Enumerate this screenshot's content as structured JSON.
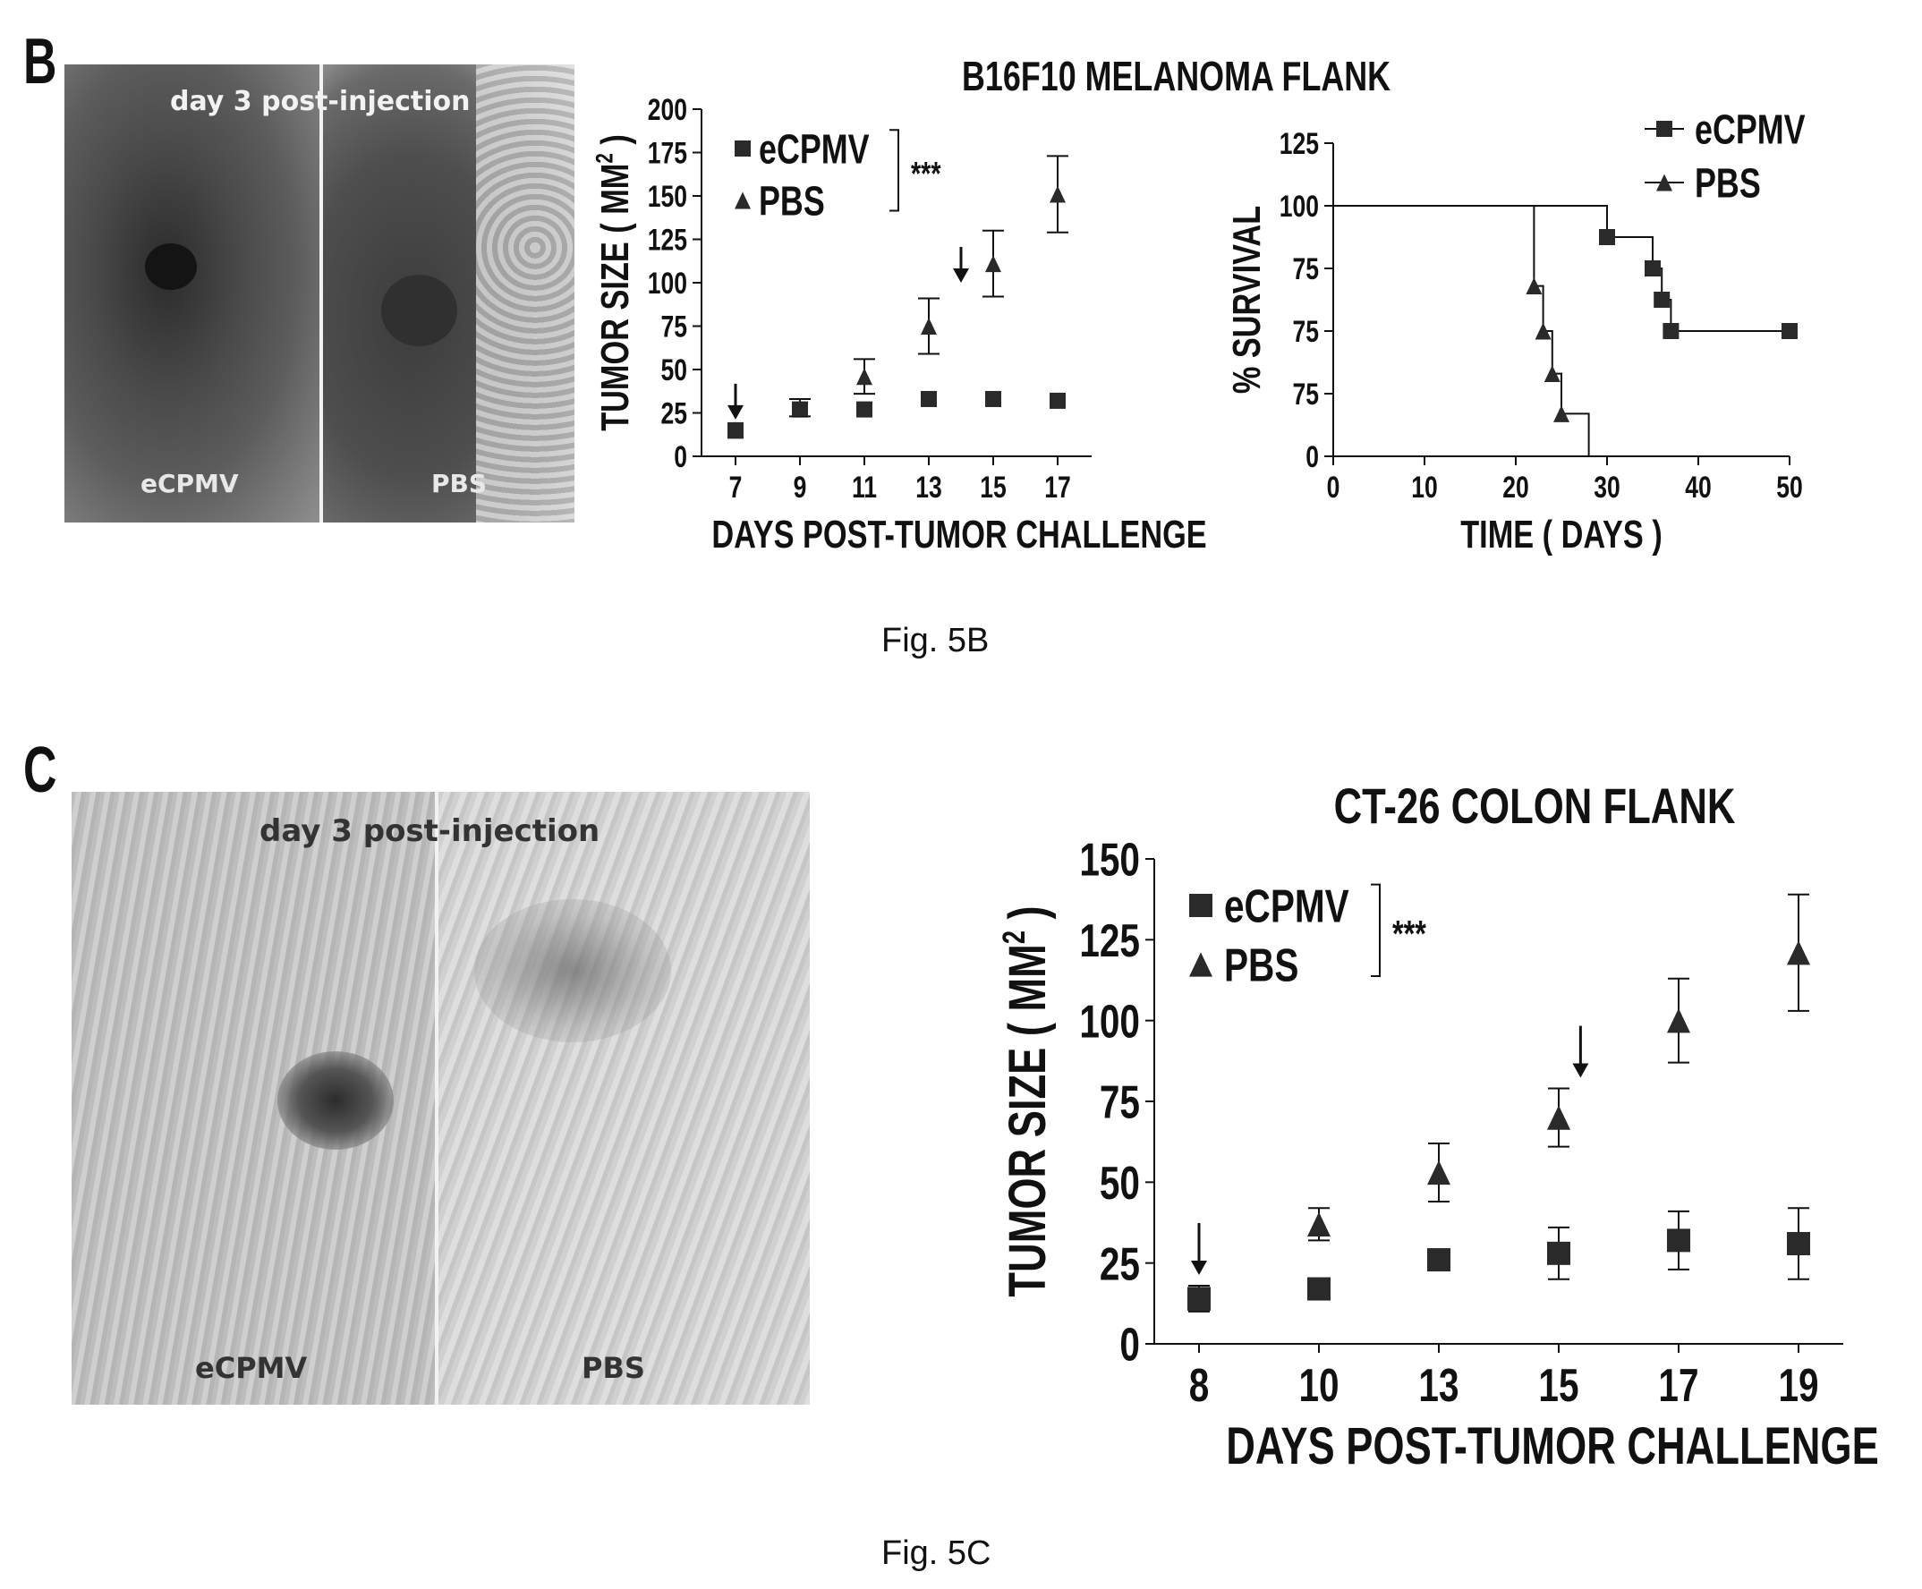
{
  "figure_b": {
    "panel_letter": "B",
    "caption": "Fig. 5B",
    "photo": {
      "top_label": "day 3 post-injection",
      "left_label": "eCPMV",
      "right_label": "PBS"
    },
    "shared_title": "B16F10 MELANOMA FLANK"
  },
  "figure_c": {
    "panel_letter": "C",
    "caption": "Fig. 5C",
    "photo": {
      "top_label": "day 3 post-injection",
      "left_label": "eCPMV",
      "right_label": "PBS"
    }
  },
  "colors": {
    "ink": "#111111",
    "marker": "#2a2a2a",
    "photo_dark": "#3a3a3a",
    "photo_light": "#c8c8c8"
  },
  "chart_data": [
    {
      "id": "b_tumor",
      "type": "scatter",
      "title": "",
      "xlabel": "DAYS POST-TUMOR CHALLENGE",
      "ylabel": "TUMOR SIZE ( MM2 )",
      "ylim": [
        0,
        200
      ],
      "yticks": [
        "0",
        "25",
        "50",
        "75",
        "100",
        "125",
        "150",
        "175",
        "200"
      ],
      "categories": [
        "7",
        "9",
        "11",
        "13",
        "15",
        "17"
      ],
      "legend_position": "top-left",
      "significance": "***",
      "treatment_arrows_at": [
        "7",
        "14"
      ],
      "series": [
        {
          "name": "eCPMV",
          "marker": "square",
          "values": [
            15,
            27,
            27,
            33,
            33,
            32
          ],
          "errors": [
            0,
            0,
            0,
            0,
            0,
            0
          ]
        },
        {
          "name": "PBS",
          "marker": "triangle",
          "values": [
            15,
            28,
            46,
            75,
            111,
            151
          ],
          "errors": [
            0,
            5,
            10,
            16,
            19,
            22
          ]
        }
      ]
    },
    {
      "id": "b_survival",
      "type": "line",
      "title": "",
      "xlabel": "TIME ( DAYS )",
      "ylabel": "% SURVIVAL",
      "ylim": [
        0,
        125
      ],
      "xlim": [
        0,
        50
      ],
      "yticks": [
        "0",
        "75",
        "75",
        "75",
        "100",
        "125"
      ],
      "xticks": [
        "0",
        "10",
        "20",
        "30",
        "40",
        "50"
      ],
      "legend_position": "top-right",
      "series": [
        {
          "name": "eCPMV",
          "marker": "square",
          "steps": [
            [
              0,
              100
            ],
            [
              30,
              100
            ],
            [
              30,
              87.5
            ],
            [
              35,
              87.5
            ],
            [
              35,
              75
            ],
            [
              36,
              75
            ],
            [
              36,
              62.5
            ],
            [
              37,
              62.5
            ],
            [
              37,
              50
            ],
            [
              50,
              50
            ]
          ],
          "markers": [
            [
              30,
              87.5
            ],
            [
              35,
              75
            ],
            [
              36,
              62.5
            ],
            [
              37,
              50
            ],
            [
              50,
              50
            ]
          ]
        },
        {
          "name": "PBS",
          "marker": "triangle",
          "steps": [
            [
              0,
              100
            ],
            [
              22,
              100
            ],
            [
              22,
              68
            ],
            [
              23,
              68
            ],
            [
              23,
              50
            ],
            [
              24,
              50
            ],
            [
              24,
              33
            ],
            [
              25,
              33
            ],
            [
              25,
              17
            ],
            [
              28,
              17
            ],
            [
              28,
              0
            ]
          ],
          "markers": [
            [
              22,
              68
            ],
            [
              23,
              50
            ],
            [
              24,
              33
            ],
            [
              25,
              17
            ]
          ]
        }
      ]
    },
    {
      "id": "c_tumor",
      "type": "scatter",
      "title": "CT-26 COLON FLANK",
      "xlabel": "DAYS POST-TUMOR CHALLENGE",
      "ylabel": "TUMOR SIZE ( MM2 )",
      "ylim": [
        0,
        150
      ],
      "yticks": [
        "0",
        "25",
        "50",
        "75",
        "100",
        "125",
        "150"
      ],
      "categories": [
        "8",
        "10",
        "13",
        "15",
        "17",
        "19"
      ],
      "legend_position": "top-left",
      "significance": "***",
      "treatment_arrows_at": [
        "8",
        "15"
      ],
      "series": [
        {
          "name": "eCPMV",
          "marker": "square",
          "values": [
            14,
            17,
            26,
            28,
            32,
            31
          ],
          "errors": [
            4,
            0,
            0,
            8,
            9,
            11
          ]
        },
        {
          "name": "PBS",
          "marker": "triangle",
          "values": [
            14,
            37,
            53,
            70,
            100,
            121
          ],
          "errors": [
            0,
            5,
            9,
            9,
            13,
            18
          ]
        }
      ]
    }
  ]
}
